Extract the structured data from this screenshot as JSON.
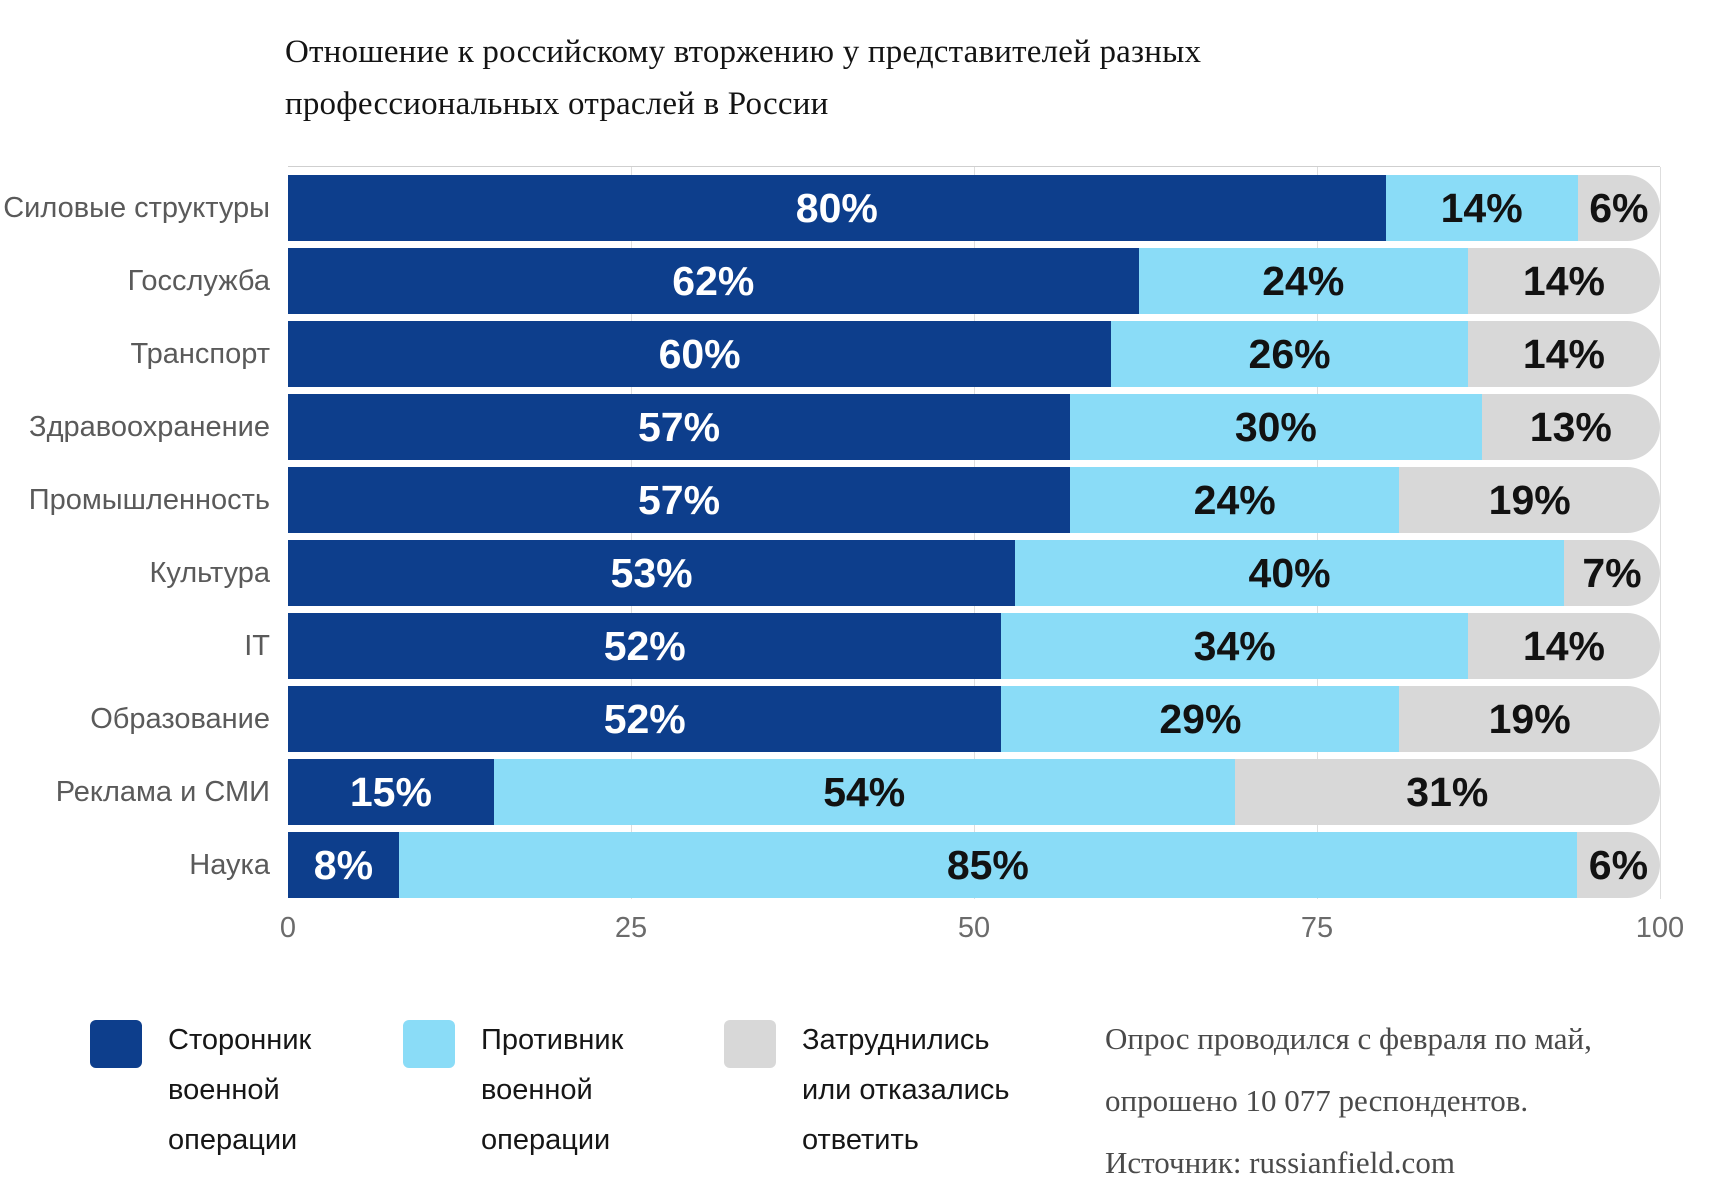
{
  "header": {
    "title_line1": "Отношение к российскому вторжению у представителей разных",
    "title_line2": "профессиональных отраслей в России"
  },
  "chart_data": {
    "type": "bar",
    "stacked": true,
    "orientation": "horizontal",
    "title": "Отношение к российскому вторжению у представителей разных профессиональных отраслей в России",
    "categories": [
      "Силовые структуры",
      "Госслужба",
      "Транспорт",
      "Здравоохранение",
      "Промышленность",
      "Культура",
      "IT",
      "Образование",
      "Реклама и СМИ",
      "Наука"
    ],
    "series": [
      {
        "name": "Сторонник военной операции",
        "color": "#0d3e8c",
        "values": [
          80,
          62,
          60,
          57,
          57,
          53,
          52,
          52,
          15,
          8
        ]
      },
      {
        "name": "Противник военной операции",
        "color": "#8adcf7",
        "values": [
          14,
          24,
          26,
          30,
          24,
          40,
          34,
          29,
          54,
          85
        ]
      },
      {
        "name": "Затруднились или отказались ответить",
        "color": "#d8d8d8",
        "values": [
          6,
          14,
          14,
          13,
          19,
          7,
          14,
          19,
          31,
          6
        ]
      }
    ],
    "value_suffix": "%",
    "x_ticks": [
      "0",
      "25",
      "50",
      "75",
      "100"
    ],
    "xlim": [
      0,
      100
    ],
    "grid": "vertical-light-gray",
    "legend_position": "bottom"
  },
  "footnote": {
    "line1": "Опрос проводился с февраля по май,",
    "line2": "опрошено 10 077 респондентов.",
    "line3": "Источник: russianfield.com"
  },
  "colors": {
    "supporter": "#0d3e8c",
    "opponent": "#8adcf7",
    "undecided": "#d8d8d8",
    "category_label": "#5a5a5a",
    "axis_label": "#6b6b6b",
    "gridline": "#dedede"
  }
}
